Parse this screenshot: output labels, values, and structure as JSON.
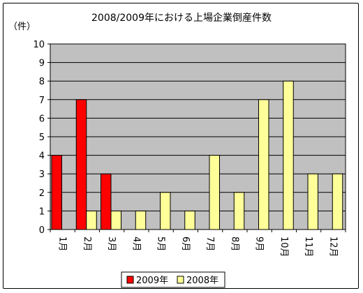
{
  "chart_data": {
    "type": "bar",
    "title": "2008/2009年における上場企業倒産件数",
    "unit_label": "（件）",
    "categories": [
      "1月",
      "2月",
      "3月",
      "4月",
      "5月",
      "6月",
      "7月",
      "8月",
      "9月",
      "10月",
      "11月",
      "12月"
    ],
    "series": [
      {
        "name": "2009年",
        "color": "#ff0000",
        "values": [
          4,
          7,
          3,
          null,
          null,
          null,
          null,
          null,
          null,
          null,
          null,
          null
        ]
      },
      {
        "name": "2008年",
        "color": "#ffff99",
        "values": [
          null,
          1,
          1,
          1,
          2,
          1,
          4,
          2,
          7,
          8,
          3,
          3
        ]
      }
    ],
    "ylim": [
      0,
      10
    ],
    "yticks": [
      0,
      1,
      2,
      3,
      4,
      5,
      6,
      7,
      8,
      9,
      10
    ],
    "grid": true,
    "plot_background": "#c0c0c0",
    "legend_position": "bottom"
  }
}
